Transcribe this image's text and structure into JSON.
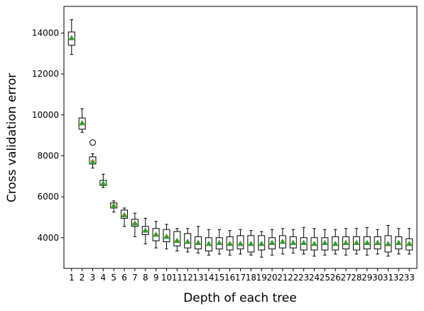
{
  "chart_data": {
    "type": "boxplot",
    "xlabel": "Depth of each tree",
    "ylabel": "Cross validation error",
    "ylim": [
      2500,
      15300
    ],
    "yticks": [
      4000,
      6000,
      8000,
      10000,
      12000,
      14000
    ],
    "grid": false,
    "legend": "none",
    "categories": [
      "1",
      "2",
      "3",
      "4",
      "5",
      "6",
      "7",
      "8",
      "9",
      "10",
      "11",
      "12",
      "13",
      "14",
      "15",
      "16",
      "17",
      "18",
      "19",
      "20",
      "21",
      "22",
      "23",
      "24",
      "25",
      "26",
      "27",
      "28",
      "29",
      "30",
      "31",
      "32",
      "33"
    ],
    "series": [
      {
        "values": [
          {
            "whislo": 12950,
            "q1": 13400,
            "med": 13700,
            "q3": 14050,
            "whishi": 14650,
            "mean": 13750,
            "fliers": []
          },
          {
            "whislo": 9150,
            "q1": 9300,
            "med": 9550,
            "q3": 9850,
            "whishi": 10300,
            "mean": 9600,
            "fliers": []
          },
          {
            "whislo": 7400,
            "q1": 7600,
            "med": 7750,
            "q3": 7950,
            "whishi": 8100,
            "mean": 7700,
            "fliers": [
              8650
            ]
          },
          {
            "whislo": 6450,
            "q1": 6550,
            "med": 6600,
            "q3": 6800,
            "whishi": 7100,
            "mean": 6650,
            "fliers": []
          },
          {
            "whislo": 5250,
            "q1": 5450,
            "med": 5600,
            "q3": 5700,
            "whishi": 5800,
            "mean": 5550,
            "fliers": []
          },
          {
            "whislo": 4550,
            "q1": 4950,
            "med": 5100,
            "q3": 5350,
            "whishi": 5450,
            "mean": 5100,
            "fliers": []
          },
          {
            "whislo": 4050,
            "q1": 4550,
            "med": 4700,
            "q3": 4900,
            "whishi": 5200,
            "mean": 4700,
            "fliers": []
          },
          {
            "whislo": 3700,
            "q1": 4150,
            "med": 4350,
            "q3": 4550,
            "whishi": 4950,
            "mean": 4350,
            "fliers": []
          },
          {
            "whislo": 3500,
            "q1": 3850,
            "med": 4150,
            "q3": 4450,
            "whishi": 4800,
            "mean": 4150,
            "fliers": []
          },
          {
            "whislo": 3450,
            "q1": 3800,
            "med": 4050,
            "q3": 4400,
            "whishi": 4650,
            "mean": 4050,
            "fliers": []
          },
          {
            "whislo": 3350,
            "q1": 3600,
            "med": 3850,
            "q3": 4300,
            "whishi": 4450,
            "mean": 3850,
            "fliers": []
          },
          {
            "whislo": 3300,
            "q1": 3500,
            "med": 3750,
            "q3": 4200,
            "whishi": 4450,
            "mean": 3800,
            "fliers": []
          },
          {
            "whislo": 3250,
            "q1": 3450,
            "med": 3700,
            "q3": 4050,
            "whishi": 4550,
            "mean": 3750,
            "fliers": []
          },
          {
            "whislo": 3150,
            "q1": 3350,
            "med": 3650,
            "q3": 4000,
            "whishi": 4400,
            "mean": 3700,
            "fliers": []
          },
          {
            "whislo": 3200,
            "q1": 3450,
            "med": 3700,
            "q3": 4000,
            "whishi": 4400,
            "mean": 3750,
            "fliers": []
          },
          {
            "whislo": 3150,
            "q1": 3400,
            "med": 3700,
            "q3": 4050,
            "whishi": 4350,
            "mean": 3700,
            "fliers": []
          },
          {
            "whislo": 3200,
            "q1": 3450,
            "med": 3650,
            "q3": 4100,
            "whishi": 4400,
            "mean": 3700,
            "fliers": []
          },
          {
            "whislo": 3150,
            "q1": 3300,
            "med": 3650,
            "q3": 4100,
            "whishi": 4350,
            "mean": 3700,
            "fliers": []
          },
          {
            "whislo": 3050,
            "q1": 3400,
            "med": 3650,
            "q3": 4100,
            "whishi": 4300,
            "mean": 3700,
            "fliers": []
          },
          {
            "whislo": 3150,
            "q1": 3450,
            "med": 3700,
            "q3": 4000,
            "whishi": 4400,
            "mean": 3750,
            "fliers": []
          },
          {
            "whislo": 3200,
            "q1": 3500,
            "med": 3750,
            "q3": 4100,
            "whishi": 4450,
            "mean": 3800,
            "fliers": []
          },
          {
            "whislo": 3250,
            "q1": 3500,
            "med": 3700,
            "q3": 4050,
            "whishi": 4400,
            "mean": 3750,
            "fliers": []
          },
          {
            "whislo": 3200,
            "q1": 3400,
            "med": 3700,
            "q3": 4000,
            "whishi": 4500,
            "mean": 3750,
            "fliers": []
          },
          {
            "whislo": 3100,
            "q1": 3400,
            "med": 3650,
            "q3": 4000,
            "whishi": 4450,
            "mean": 3700,
            "fliers": []
          },
          {
            "whislo": 3150,
            "q1": 3400,
            "med": 3700,
            "q3": 4000,
            "whishi": 4400,
            "mean": 3750,
            "fliers": []
          },
          {
            "whislo": 3200,
            "q1": 3400,
            "med": 3650,
            "q3": 4050,
            "whishi": 4400,
            "mean": 3700,
            "fliers": []
          },
          {
            "whislo": 3150,
            "q1": 3450,
            "med": 3700,
            "q3": 4050,
            "whishi": 4450,
            "mean": 3750,
            "fliers": []
          },
          {
            "whislo": 3200,
            "q1": 3400,
            "med": 3700,
            "q3": 4050,
            "whishi": 4450,
            "mean": 3750,
            "fliers": []
          },
          {
            "whislo": 3150,
            "q1": 3450,
            "med": 3750,
            "q3": 4050,
            "whishi": 4500,
            "mean": 3750,
            "fliers": []
          },
          {
            "whislo": 3200,
            "q1": 3450,
            "med": 3700,
            "q3": 4050,
            "whishi": 4400,
            "mean": 3750,
            "fliers": []
          },
          {
            "whislo": 3100,
            "q1": 3300,
            "med": 3600,
            "q3": 4100,
            "whishi": 4600,
            "mean": 3700,
            "fliers": []
          },
          {
            "whislo": 3200,
            "q1": 3450,
            "med": 3700,
            "q3": 4050,
            "whishi": 4450,
            "mean": 3750,
            "fliers": []
          },
          {
            "whislo": 3200,
            "q1": 3400,
            "med": 3700,
            "q3": 3950,
            "whishi": 4450,
            "mean": 3700,
            "fliers": []
          }
        ]
      }
    ],
    "colors": {
      "box": "#000000",
      "median": "#ff7f0e",
      "mean_marker": "#2ca02c",
      "flier": "#000000"
    }
  }
}
